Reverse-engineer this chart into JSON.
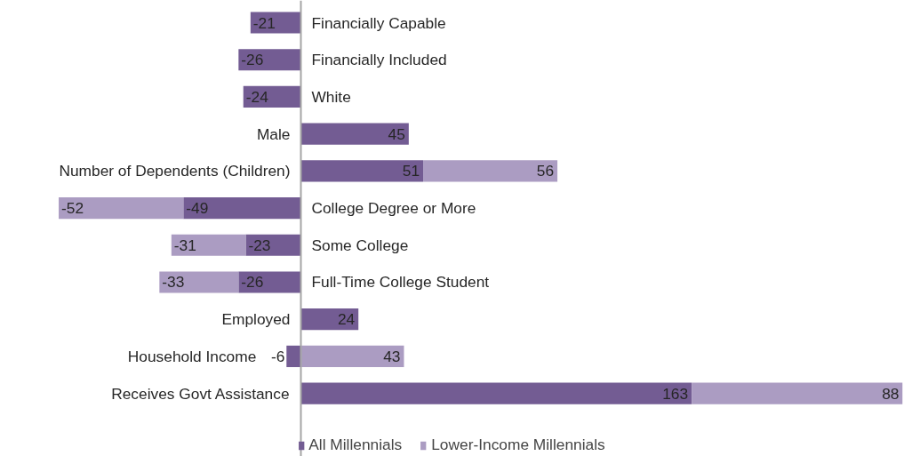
{
  "chart_data": {
    "type": "bar",
    "orientation": "horizontal",
    "stacked": true,
    "data_labels": true,
    "legend": "bottom",
    "categories": [
      "Financially Capable",
      "Financially Included",
      "White",
      "Male",
      "Number of Dependents (Children)",
      "College Degree or More",
      "Some College",
      "Full-Time College Student",
      "Employed",
      "Household Income",
      "Receives Govt Assistance"
    ],
    "series": [
      {
        "name": "All Millennials",
        "color": "#735c93",
        "values": [
          -21,
          -26,
          -24,
          45,
          51,
          -49,
          -23,
          -26,
          24,
          -6,
          163
        ]
      },
      {
        "name": "Lower-Income Millennials",
        "color": "#ab9cc2",
        "values": [
          null,
          null,
          null,
          null,
          56,
          -52,
          -31,
          -33,
          null,
          43,
          88
        ]
      }
    ]
  }
}
